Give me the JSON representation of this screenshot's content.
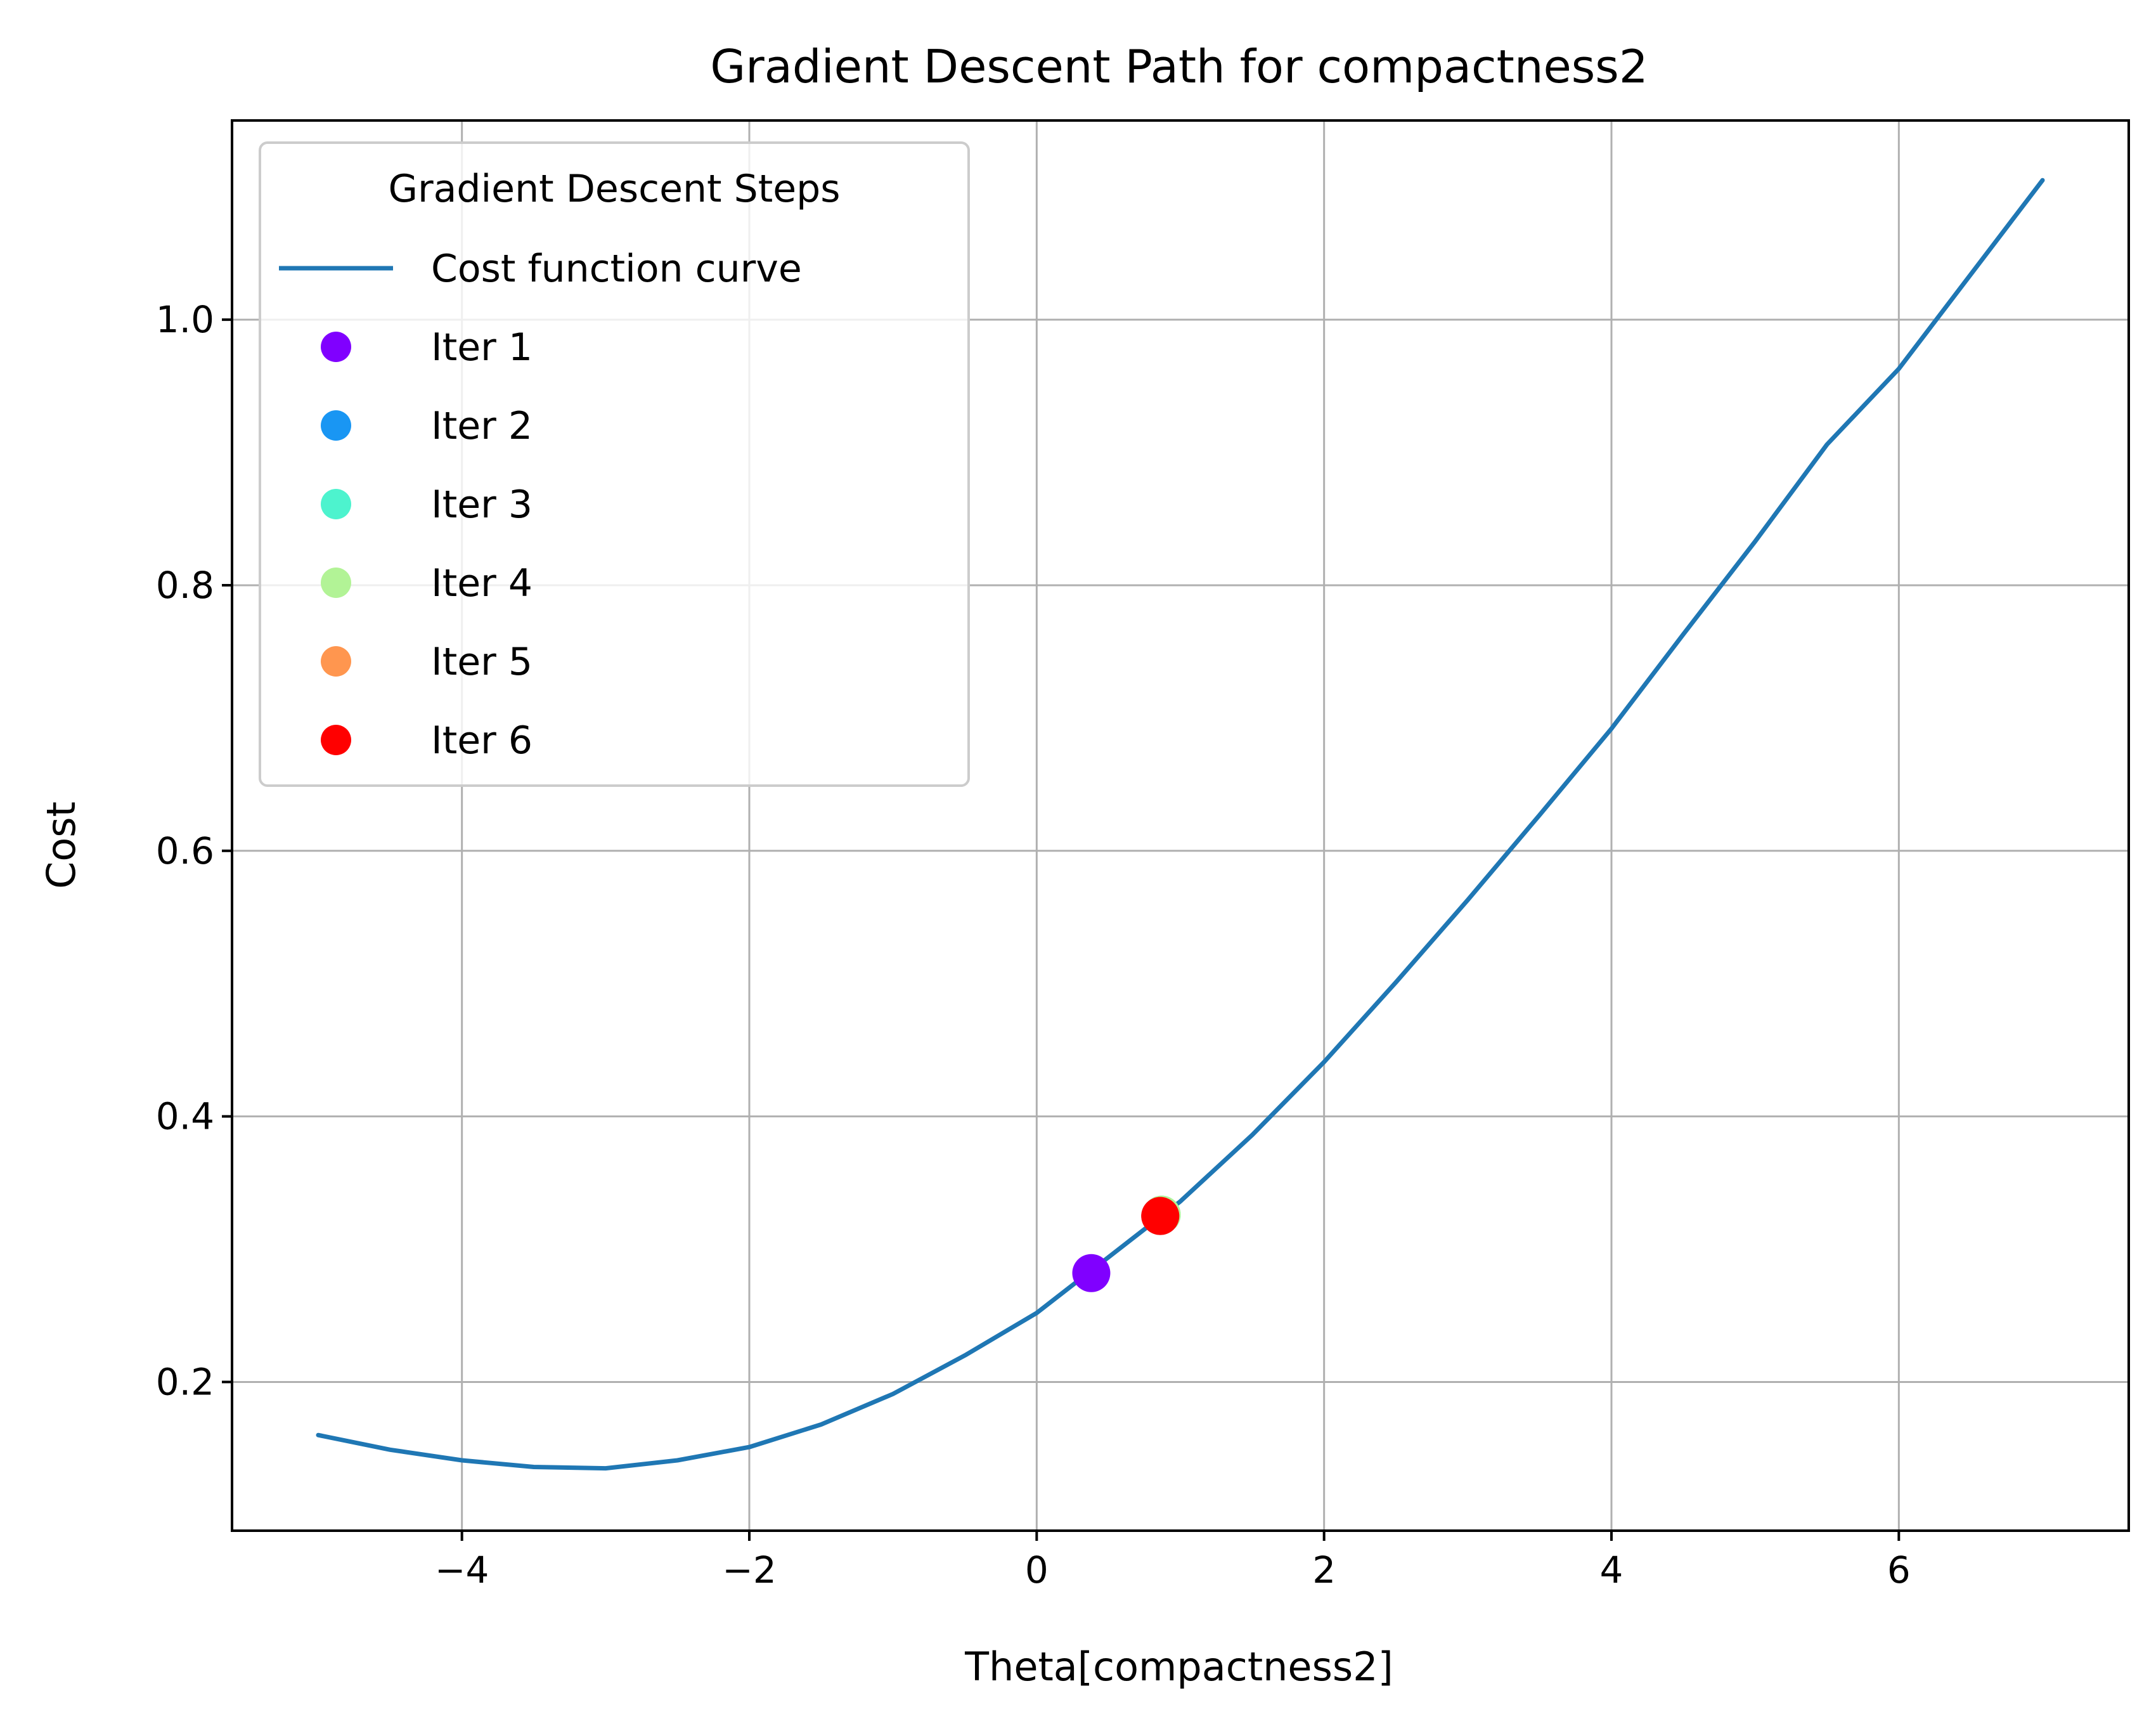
{
  "chart_data": {
    "type": "line",
    "title": "Gradient Descent Path for compactness2",
    "xlabel": "Theta[compactness2]",
    "ylabel": "Cost",
    "xlim": [
      -5.6,
      7.6
    ],
    "ylim": [
      0.088,
      1.15
    ],
    "xticks": [
      -4,
      -2,
      0,
      2,
      4,
      6
    ],
    "xtick_labels": [
      "−4",
      "−2",
      "0",
      "2",
      "4",
      "6"
    ],
    "yticks": [
      0.2,
      0.4,
      0.6,
      0.8,
      1.0
    ],
    "ytick_labels": [
      "0.2",
      "0.4",
      "0.6",
      "0.8",
      "1.0"
    ],
    "grid": true,
    "legend": {
      "title": "Gradient Descent Steps",
      "placement": "top-left"
    },
    "series": [
      {
        "name": "Cost function curve",
        "kind": "line",
        "color": "#1f77b4",
        "x": [
          -5.0,
          -4.5,
          -4.0,
          -3.5,
          -3.0,
          -2.5,
          -2.0,
          -1.5,
          -1.0,
          -0.5,
          0.0,
          0.5,
          1.0,
          1.5,
          2.0,
          2.5,
          3.0,
          3.5,
          4.0,
          4.5,
          5.0,
          5.5,
          6.0,
          6.5,
          7.0
        ],
        "y": [
          0.16,
          0.149,
          0.141,
          0.136,
          0.135,
          0.141,
          0.151,
          0.168,
          0.191,
          0.22,
          0.252,
          0.294,
          0.336,
          0.386,
          0.441,
          0.501,
          0.563,
          0.627,
          0.692,
          0.763,
          0.833,
          0.906,
          0.963,
          1.034,
          1.105
        ]
      }
    ],
    "points": [
      {
        "name": "Iter 1",
        "x": 0.38,
        "y": 0.282,
        "color": "#8000ff"
      },
      {
        "name": "Iter 2",
        "x": 0.86,
        "y": 0.325,
        "color": "#1996f3"
      },
      {
        "name": "Iter 3",
        "x": 0.87,
        "y": 0.326,
        "color": "#4df3ce"
      },
      {
        "name": "Iter 4",
        "x": 0.87,
        "y": 0.326,
        "color": "#b2f396"
      },
      {
        "name": "Iter 5",
        "x": 0.86,
        "y": 0.325,
        "color": "#ff964f"
      },
      {
        "name": "Iter 6",
        "x": 0.86,
        "y": 0.325,
        "color": "#ff0000"
      }
    ]
  }
}
